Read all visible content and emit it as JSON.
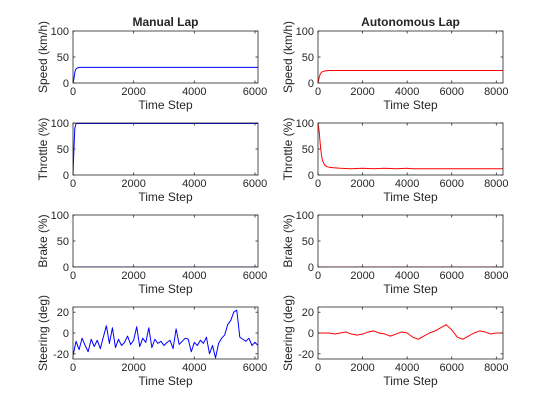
{
  "chart_data": [
    {
      "type": "line",
      "title": "Manual Lap",
      "xlabel": "Time Step",
      "ylabel": "Speed (km/h)",
      "xlim": [
        0,
        6100
      ],
      "ylim": [
        0,
        100
      ],
      "xticks": [
        0,
        2000,
        4000,
        6000
      ],
      "yticks": [
        0,
        50,
        100
      ],
      "grid": false,
      "series": [
        {
          "color": "#0000ff",
          "x": [
            0,
            20,
            40,
            60,
            80,
            100,
            150,
            200,
            400,
            1000,
            2000,
            3000,
            4000,
            5000,
            6000,
            6100
          ],
          "y": [
            0,
            5,
            12,
            20,
            25,
            27,
            29,
            30,
            30,
            30,
            30,
            30,
            30,
            30,
            30,
            30
          ]
        }
      ]
    },
    {
      "type": "line",
      "title": "Autonomous Lap",
      "xlabel": "Time Step",
      "ylabel": "Speed (km/h)",
      "xlim": [
        0,
        8300
      ],
      "ylim": [
        0,
        100
      ],
      "xticks": [
        0,
        2000,
        4000,
        6000,
        8000
      ],
      "yticks": [
        0,
        50,
        100
      ],
      "grid": false,
      "series": [
        {
          "color": "#ff0000",
          "x": [
            0,
            30,
            60,
            100,
            150,
            200,
            300,
            500,
            1000,
            2000,
            3000,
            4000,
            5000,
            6000,
            7000,
            8000,
            8300
          ],
          "y": [
            0,
            6,
            12,
            17,
            20,
            22,
            23,
            24,
            24,
            24,
            24,
            24,
            24,
            24,
            24,
            24,
            24
          ]
        }
      ]
    },
    {
      "type": "line",
      "title": "",
      "xlabel": "Time Step",
      "ylabel": "Throttle (%)",
      "xlim": [
        0,
        6100
      ],
      "ylim": [
        0,
        100
      ],
      "xticks": [
        0,
        2000,
        4000,
        6000
      ],
      "yticks": [
        0,
        50,
        100
      ],
      "grid": false,
      "series": [
        {
          "color": "#0000ff",
          "x": [
            0,
            30,
            60,
            100,
            200,
            1000,
            2000,
            3000,
            4000,
            5000,
            6000,
            6100
          ],
          "y": [
            0,
            50,
            90,
            99,
            99,
            99,
            99,
            99,
            99,
            99,
            99,
            99
          ]
        }
      ]
    },
    {
      "type": "line",
      "title": "",
      "xlabel": "Time Step",
      "ylabel": "Throttle (%)",
      "xlim": [
        0,
        8300
      ],
      "ylim": [
        0,
        100
      ],
      "xticks": [
        0,
        2000,
        4000,
        6000,
        8000
      ],
      "yticks": [
        0,
        50,
        100
      ],
      "grid": false,
      "series": [
        {
          "color": "#ff0000",
          "x": [
            0,
            50,
            100,
            150,
            200,
            300,
            400,
            500,
            700,
            1000,
            1500,
            2000,
            2500,
            3000,
            3500,
            4000,
            4200,
            5000,
            6000,
            7000,
            8000,
            8300
          ],
          "y": [
            100,
            85,
            60,
            40,
            28,
            19,
            16,
            15,
            14,
            13,
            12,
            13,
            12,
            13,
            12,
            13,
            12,
            12,
            12,
            12,
            12,
            12
          ]
        }
      ]
    },
    {
      "type": "line",
      "title": "",
      "xlabel": "Time Step",
      "ylabel": "Brake (%)",
      "xlim": [
        0,
        6100
      ],
      "ylim": [
        0,
        100
      ],
      "xticks": [
        0,
        2000,
        4000,
        6000
      ],
      "yticks": [
        0,
        50,
        100
      ],
      "grid": false,
      "series": [
        {
          "color": "#0000ff",
          "x": [
            0,
            1000,
            2000,
            3000,
            4000,
            5000,
            6000,
            6100
          ],
          "y": [
            0,
            0,
            0,
            0,
            0,
            0,
            0,
            0
          ]
        }
      ]
    },
    {
      "type": "line",
      "title": "",
      "xlabel": "Time Step",
      "ylabel": "Brake (%)",
      "xlim": [
        0,
        8300
      ],
      "ylim": [
        0,
        100
      ],
      "xticks": [
        0,
        2000,
        4000,
        6000,
        8000
      ],
      "yticks": [
        0,
        50,
        100
      ],
      "grid": false,
      "series": [
        {
          "color": "#ff0000",
          "x": [
            0,
            2000,
            4000,
            6000,
            8000,
            8300
          ],
          "y": [
            0,
            0,
            0,
            0,
            0,
            0
          ]
        }
      ]
    },
    {
      "type": "line",
      "title": "",
      "xlabel": "Time Step",
      "ylabel": "Steering (deg)",
      "xlim": [
        0,
        6100
      ],
      "ylim": [
        -25,
        25
      ],
      "xticks": [
        0,
        2000,
        4000,
        6000
      ],
      "yticks": [
        -20,
        0,
        20
      ],
      "grid": false,
      "series": [
        {
          "color": "#0000ff",
          "x": [
            0,
            100,
            200,
            300,
            400,
            500,
            600,
            700,
            800,
            900,
            1000,
            1100,
            1200,
            1300,
            1400,
            1500,
            1600,
            1700,
            1800,
            1900,
            2000,
            2100,
            2200,
            2300,
            2400,
            2500,
            2600,
            2700,
            2800,
            2900,
            3000,
            3100,
            3200,
            3300,
            3400,
            3500,
            3600,
            3700,
            3800,
            3900,
            4000,
            4100,
            4200,
            4300,
            4400,
            4500,
            4600,
            4700,
            4800,
            4900,
            5000,
            5100,
            5200,
            5300,
            5400,
            5500,
            5600,
            5700,
            5800,
            5900,
            6000,
            6100
          ],
          "y": [
            -22,
            -8,
            -16,
            -5,
            -12,
            -18,
            -6,
            -13,
            -7,
            -15,
            -4,
            7,
            -10,
            5,
            -14,
            -6,
            -12,
            -9,
            -3,
            -11,
            -7,
            6,
            -13,
            -5,
            -9,
            5,
            -14,
            -6,
            -10,
            -8,
            -12,
            -9,
            -7,
            -15,
            4,
            -11,
            -8,
            -5,
            -6,
            -18,
            -9,
            -12,
            -7,
            -10,
            -4,
            -20,
            -12,
            -24,
            -10,
            -5,
            -2,
            8,
            12,
            20,
            22,
            -4,
            -6,
            -8,
            -5,
            -12,
            -9,
            -12
          ]
        }
      ]
    },
    {
      "type": "line",
      "title": "",
      "xlabel": "Time Step",
      "ylabel": "Steering (deg)",
      "xlim": [
        0,
        8300
      ],
      "ylim": [
        -25,
        25
      ],
      "xticks": [
        0,
        2000,
        4000,
        6000,
        8000
      ],
      "yticks": [
        -20,
        0,
        20
      ],
      "grid": false,
      "series": [
        {
          "color": "#ff0000",
          "x": [
            0,
            250,
            500,
            750,
            1000,
            1250,
            1500,
            1750,
            2000,
            2250,
            2500,
            2750,
            3000,
            3250,
            3500,
            3750,
            4000,
            4250,
            4500,
            4750,
            5000,
            5250,
            5500,
            5750,
            6000,
            6250,
            6500,
            6750,
            7000,
            7250,
            7500,
            7750,
            8000,
            8300
          ],
          "y": [
            0,
            0,
            0,
            -1,
            0,
            1,
            -1,
            -2,
            -1,
            1,
            2,
            0,
            -1,
            -3,
            -1,
            1,
            0,
            -4,
            -6,
            -3,
            0,
            2,
            5,
            8,
            3,
            -4,
            -6,
            -3,
            0,
            2,
            1,
            -1,
            0,
            0
          ]
        }
      ]
    }
  ]
}
